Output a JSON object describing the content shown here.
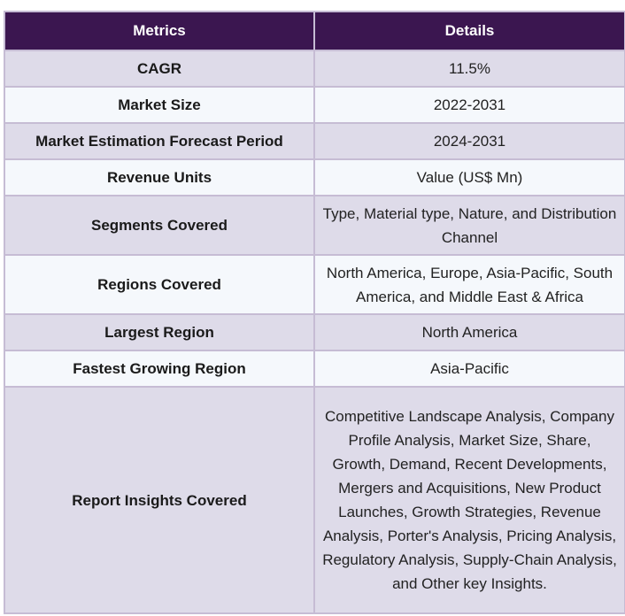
{
  "table": {
    "headers": [
      "Metrics",
      "Details"
    ],
    "rows": [
      {
        "metric": "CAGR",
        "details": "11.5%"
      },
      {
        "metric": "Market Size",
        "details": "2022-2031"
      },
      {
        "metric": "Market Estimation Forecast Period",
        "details": "2024-2031"
      },
      {
        "metric": "Revenue Units",
        "details": "Value (US$ Mn)"
      },
      {
        "metric": "Segments Covered",
        "details": "Type, Material type, Nature, and Distribution Channel"
      },
      {
        "metric": "Regions Covered",
        "details": "North America, Europe, Asia-Pacific, South America, and Middle East & Africa"
      },
      {
        "metric": "Largest Region",
        "details": "North America"
      },
      {
        "metric": "Fastest Growing Region",
        "details": "Asia-Pacific"
      },
      {
        "metric": "Report Insights Covered",
        "details": "Competitive Landscape Analysis, Company Profile Analysis, Market Size, Share, Growth, Demand, Recent Developments, Mergers and Acquisitions, New Product Launches, Growth Strategies, Revenue Analysis, Porter's Analysis, Pricing Analysis, Regulatory Analysis, Supply-Chain Analysis, and Other key Insights."
      }
    ]
  }
}
